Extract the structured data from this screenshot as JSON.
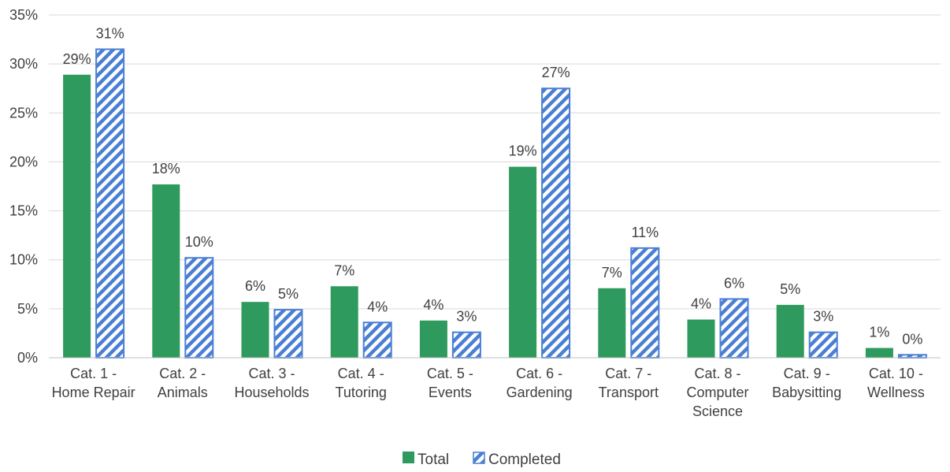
{
  "chart_data": {
    "type": "bar",
    "categories": [
      [
        "Cat. 1 -",
        "Home Repair"
      ],
      [
        "Cat. 2 -",
        "Animals"
      ],
      [
        "Cat. 3 -",
        "Households"
      ],
      [
        "Cat. 4 -",
        "Tutoring"
      ],
      [
        "Cat. 5 -",
        "Events"
      ],
      [
        "Cat. 6 -",
        "Gardening"
      ],
      [
        "Cat. 7 -",
        "Transport"
      ],
      [
        "Cat. 8 -",
        "Computer",
        "Science"
      ],
      [
        "Cat. 9 -",
        "Babysitting"
      ],
      [
        "Cat. 10 -",
        "Wellness"
      ]
    ],
    "series": [
      {
        "name": "Total",
        "values": [
          28.9,
          17.7,
          5.7,
          7.3,
          3.8,
          19.5,
          7.1,
          3.9,
          5.4,
          1.0
        ],
        "labels": [
          "29%",
          "18%",
          "6%",
          "7%",
          "4%",
          "19%",
          "7%",
          "4%",
          "5%",
          "1%"
        ],
        "color": "#2e9a5e",
        "fill": "solid"
      },
      {
        "name": "Completed",
        "values": [
          31.5,
          10.2,
          4.9,
          3.6,
          2.6,
          27.5,
          11.2,
          6.0,
          2.6,
          0.3
        ],
        "labels": [
          "31%",
          "10%",
          "5%",
          "4%",
          "3%",
          "27%",
          "11%",
          "6%",
          "3%",
          "0%"
        ],
        "color": "#4a7fd4",
        "fill": "diagonal-stripes"
      }
    ],
    "ylim": [
      0,
      35
    ],
    "yticks": [
      0,
      5,
      10,
      15,
      20,
      25,
      30,
      35
    ],
    "ytick_labels": [
      "0%",
      "5%",
      "10%",
      "15%",
      "20%",
      "25%",
      "30%",
      "35%"
    ],
    "grid": true,
    "legend_position": "bottom-center",
    "title": "",
    "xlabel": "",
    "ylabel": ""
  },
  "colors": {
    "grid": "#d9d9d9",
    "axis": "#bfbfbf",
    "text": "#404040"
  }
}
